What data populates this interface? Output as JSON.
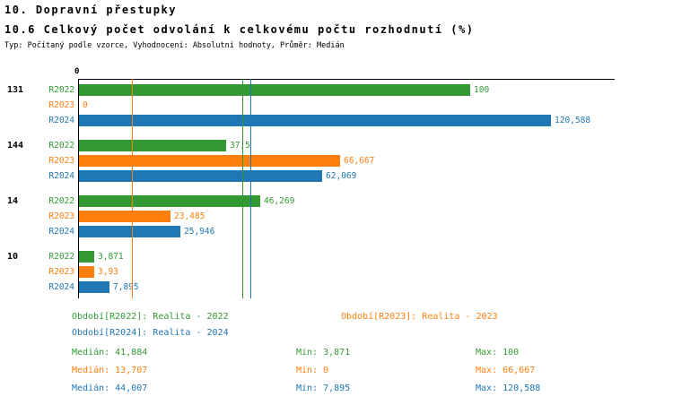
{
  "title": "10. Dopravní přestupky",
  "subtitle": "10.6 Celkový počet odvolání k celkovému počtu rozhodnutí (%)",
  "meta": "Typ: Počítaný podle vzorce, Vyhodnocení: Absolutní hodnoty, Průměr: Medián",
  "colors": {
    "r2022": "#339933",
    "r2023": "#ff7f0e",
    "r2024": "#1f77b4"
  },
  "chart_data": {
    "type": "bar",
    "orientation": "horizontal",
    "unit": "%",
    "axis_origin_label": "0",
    "xlim": [
      0,
      137
    ],
    "series_names": [
      "R2022",
      "R2023",
      "R2024"
    ],
    "groups": [
      {
        "label": "131",
        "bars": [
          {
            "series": "R2022",
            "value": 100,
            "display": "100"
          },
          {
            "series": "R2023",
            "value": 0,
            "display": "0"
          },
          {
            "series": "R2024",
            "value": 120.588,
            "display": "120,588"
          }
        ]
      },
      {
        "label": "144",
        "bars": [
          {
            "series": "R2022",
            "value": 37.5,
            "display": "37,5"
          },
          {
            "series": "R2023",
            "value": 66.667,
            "display": "66,667"
          },
          {
            "series": "R2024",
            "value": 62.069,
            "display": "62,069"
          }
        ]
      },
      {
        "label": "14",
        "bars": [
          {
            "series": "R2022",
            "value": 46.269,
            "display": "46,269"
          },
          {
            "series": "R2023",
            "value": 23.485,
            "display": "23,485"
          },
          {
            "series": "R2024",
            "value": 25.946,
            "display": "25,946"
          }
        ]
      },
      {
        "label": "10",
        "bars": [
          {
            "series": "R2022",
            "value": 3.871,
            "display": "3,871"
          },
          {
            "series": "R2023",
            "value": 3.93,
            "display": "3,93"
          },
          {
            "series": "R2024",
            "value": 7.895,
            "display": "7,895"
          }
        ]
      }
    ],
    "median_lines": [
      {
        "series": "R2022",
        "value": 41.884
      },
      {
        "series": "R2023",
        "value": 13.707
      },
      {
        "series": "R2024",
        "value": 44.007
      }
    ]
  },
  "legend": [
    {
      "series": "R2022",
      "label": "Období[R2022]: Realita - 2022"
    },
    {
      "series": "R2023",
      "label": "Období[R2023]: Realita - 2023"
    },
    {
      "series": "R2024",
      "label": "Období[R2024]: Realita - 2024"
    }
  ],
  "stats": [
    {
      "series": "R2022",
      "median": "Medián: 41,884",
      "min": "Min: 3,871",
      "max": "Max: 100"
    },
    {
      "series": "R2023",
      "median": "Medián: 13,707",
      "min": "Min: 0",
      "max": "Max: 66,667"
    },
    {
      "series": "R2024",
      "median": "Medián: 44,007",
      "min": "Min: 7,895",
      "max": "Max: 120,588"
    }
  ]
}
